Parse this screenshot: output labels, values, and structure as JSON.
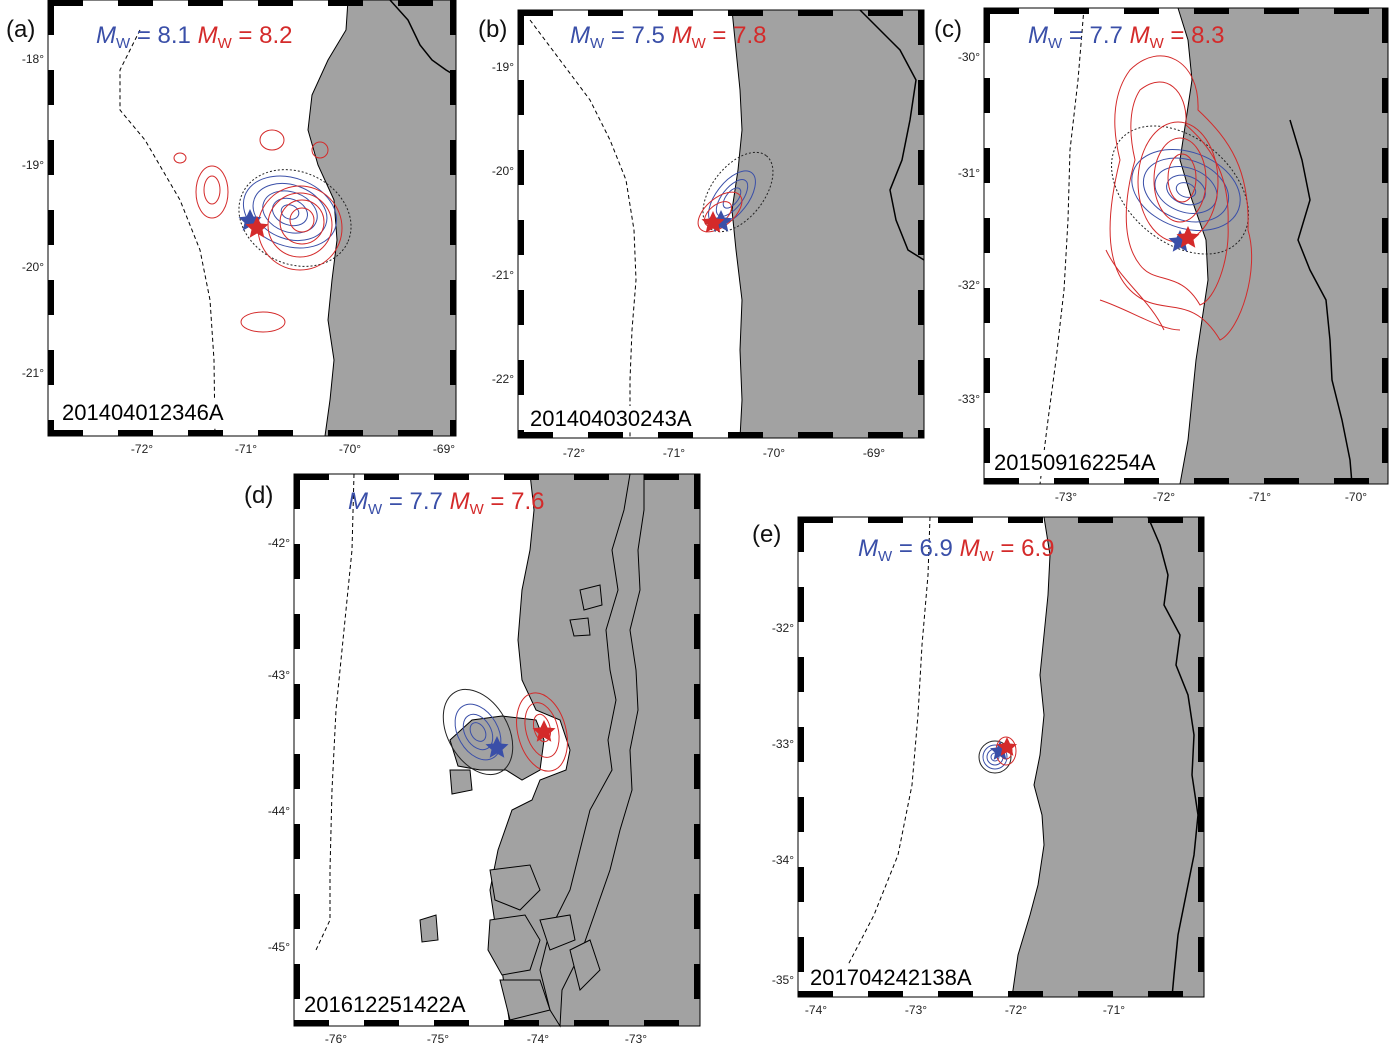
{
  "colors": {
    "land": "#a2a2a2",
    "blue": "#3a4fa8",
    "red": "#d42a2a",
    "black": "#000000"
  },
  "icons": {
    "epicenter": "star-icon"
  },
  "panels": [
    {
      "id": "a",
      "label": "(a)",
      "event_id": "201404012346A",
      "mw_blue": "8.1",
      "mw_red": "8.2",
      "x_ticks": [
        "-72°",
        "-71°",
        "-70°",
        "-69°"
      ],
      "y_ticks": [
        "-18°",
        "-19°",
        "-20°",
        "-21°"
      ]
    },
    {
      "id": "b",
      "label": "(b)",
      "event_id": "201404030243A",
      "mw_blue": "7.5",
      "mw_red": "7.8",
      "x_ticks": [
        "-72°",
        "-71°",
        "-70°",
        "-69°"
      ],
      "y_ticks": [
        "-19°",
        "-20°",
        "-21°",
        "-22°"
      ]
    },
    {
      "id": "c",
      "label": "(c)",
      "event_id": "201509162254A",
      "mw_blue": "7.7",
      "mw_red": "8.3",
      "x_ticks": [
        "-73°",
        "-72°",
        "-71°",
        "-70°"
      ],
      "y_ticks": [
        "-30°",
        "-31°",
        "-32°",
        "-33°"
      ]
    },
    {
      "id": "d",
      "label": "(d)",
      "event_id": "201612251422A",
      "mw_blue": "7.7",
      "mw_red": "7.6",
      "x_ticks": [
        "-76°",
        "-75°",
        "-74°",
        "-73°"
      ],
      "y_ticks": [
        "-42°",
        "-43°",
        "-44°",
        "-45°"
      ]
    },
    {
      "id": "e",
      "label": "(e)",
      "event_id": "201704242138A",
      "mw_blue": "6.9",
      "mw_red": "6.9",
      "x_ticks": [
        "-74°",
        "-73°",
        "-72°",
        "-71°"
      ],
      "y_ticks": [
        "-32°",
        "-33°",
        "-34°",
        "-35°"
      ]
    }
  ],
  "mw_symbol": "M",
  "mw_sub": "W"
}
